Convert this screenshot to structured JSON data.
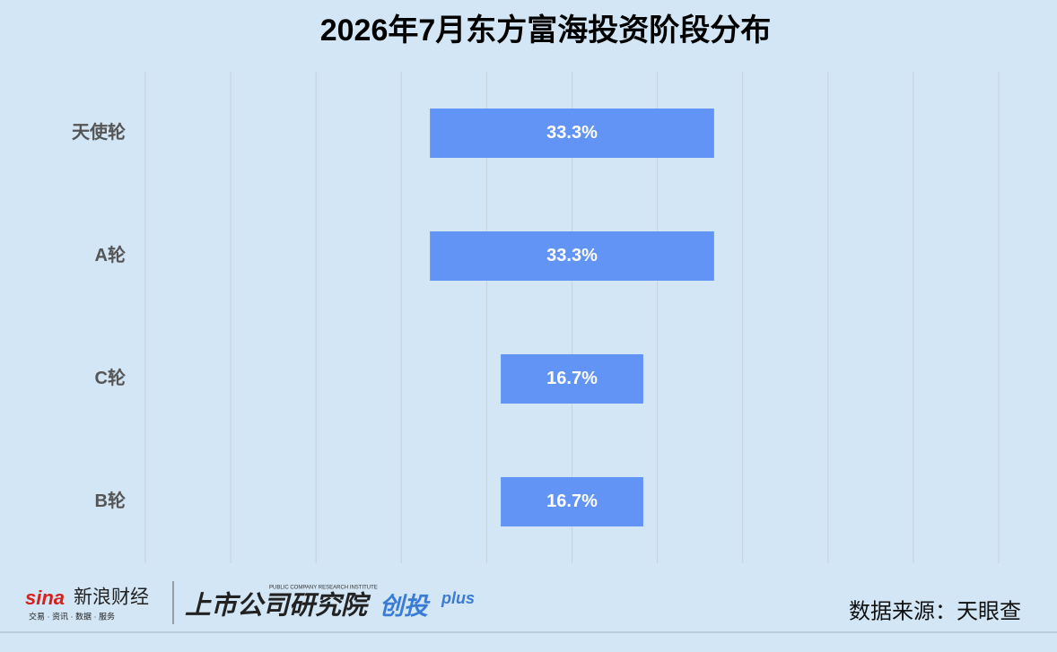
{
  "chart_data": {
    "type": "funnel",
    "title": "2026年7月东方富海投资阶段分布",
    "categories": [
      "天使轮",
      "A轮",
      "C轮",
      "B轮"
    ],
    "values": [
      33.3,
      33.3,
      16.7,
      16.7
    ],
    "value_labels": [
      "33.3%",
      "33.3%",
      "16.7%",
      "16.7%"
    ],
    "color": "#6194f5",
    "xlim": [
      0,
      100
    ],
    "grid": true
  },
  "footer": {
    "brand": "新浪财经",
    "brand_logo": "sina",
    "brand_tagline": "交易 · 资讯 · 数据 · 服务",
    "institute": "上市公司研究院",
    "institute_en": "PUBLIC COMPANY RESEARCH INSTITUTE",
    "product": "创投",
    "product_suffix": "plus",
    "source": "数据来源：天眼查"
  }
}
